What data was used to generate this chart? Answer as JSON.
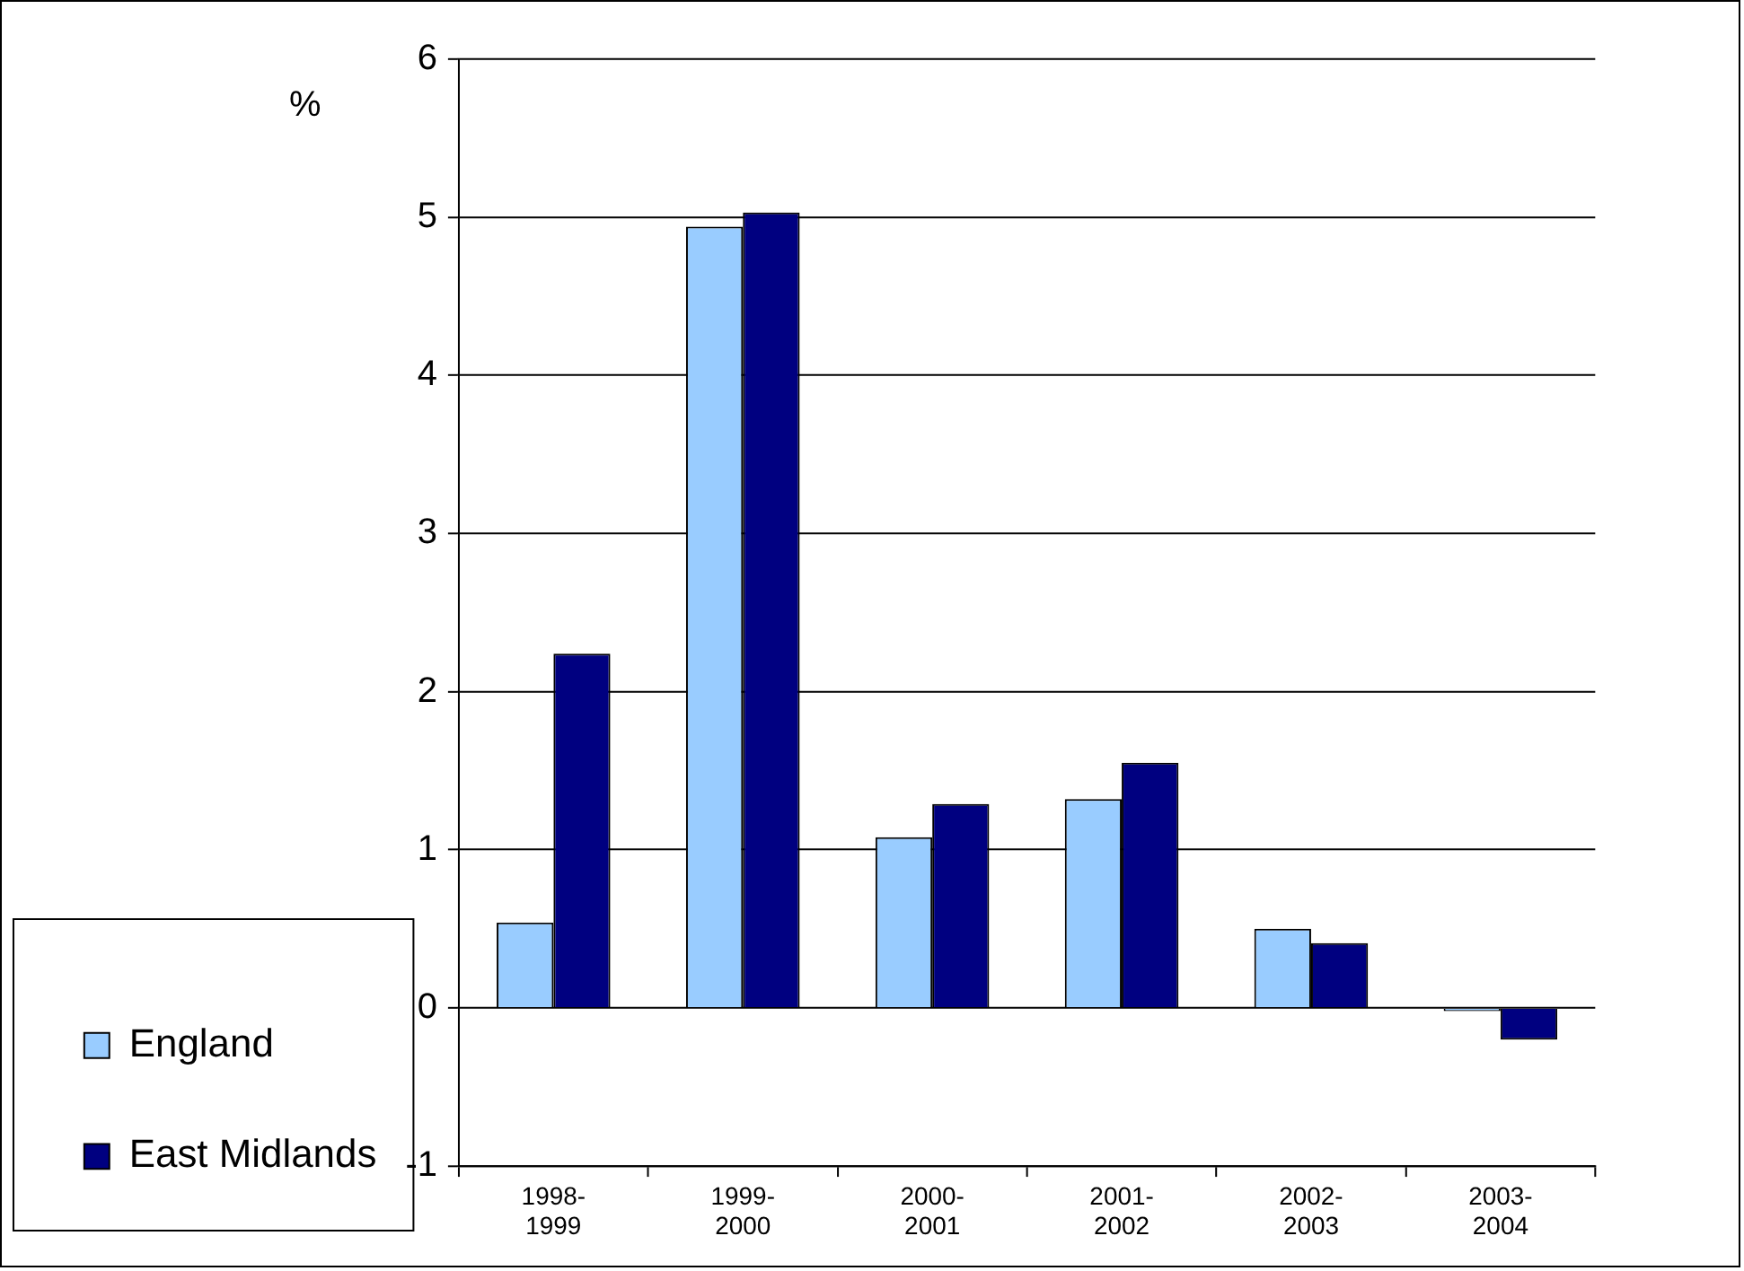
{
  "chart_data": {
    "type": "bar",
    "ylabel": "%",
    "categories": [
      "1998-1999",
      "1999-2000",
      "2000-2001",
      "2001-2002",
      "2002-2003",
      "2003-2004"
    ],
    "series": [
      {
        "name": "England",
        "color": "#99ccff",
        "values": [
          0.54,
          4.94,
          1.08,
          1.32,
          0.5,
          -0.02
        ]
      },
      {
        "name": "East Midlands",
        "color": "#000080",
        "values": [
          2.24,
          5.03,
          1.29,
          1.55,
          0.41,
          -0.2
        ]
      }
    ],
    "ylim": [
      -1,
      6
    ],
    "yticks": [
      -1,
      0,
      1,
      2,
      3,
      4,
      5,
      6
    ],
    "grid": "y",
    "legend": "left"
  }
}
